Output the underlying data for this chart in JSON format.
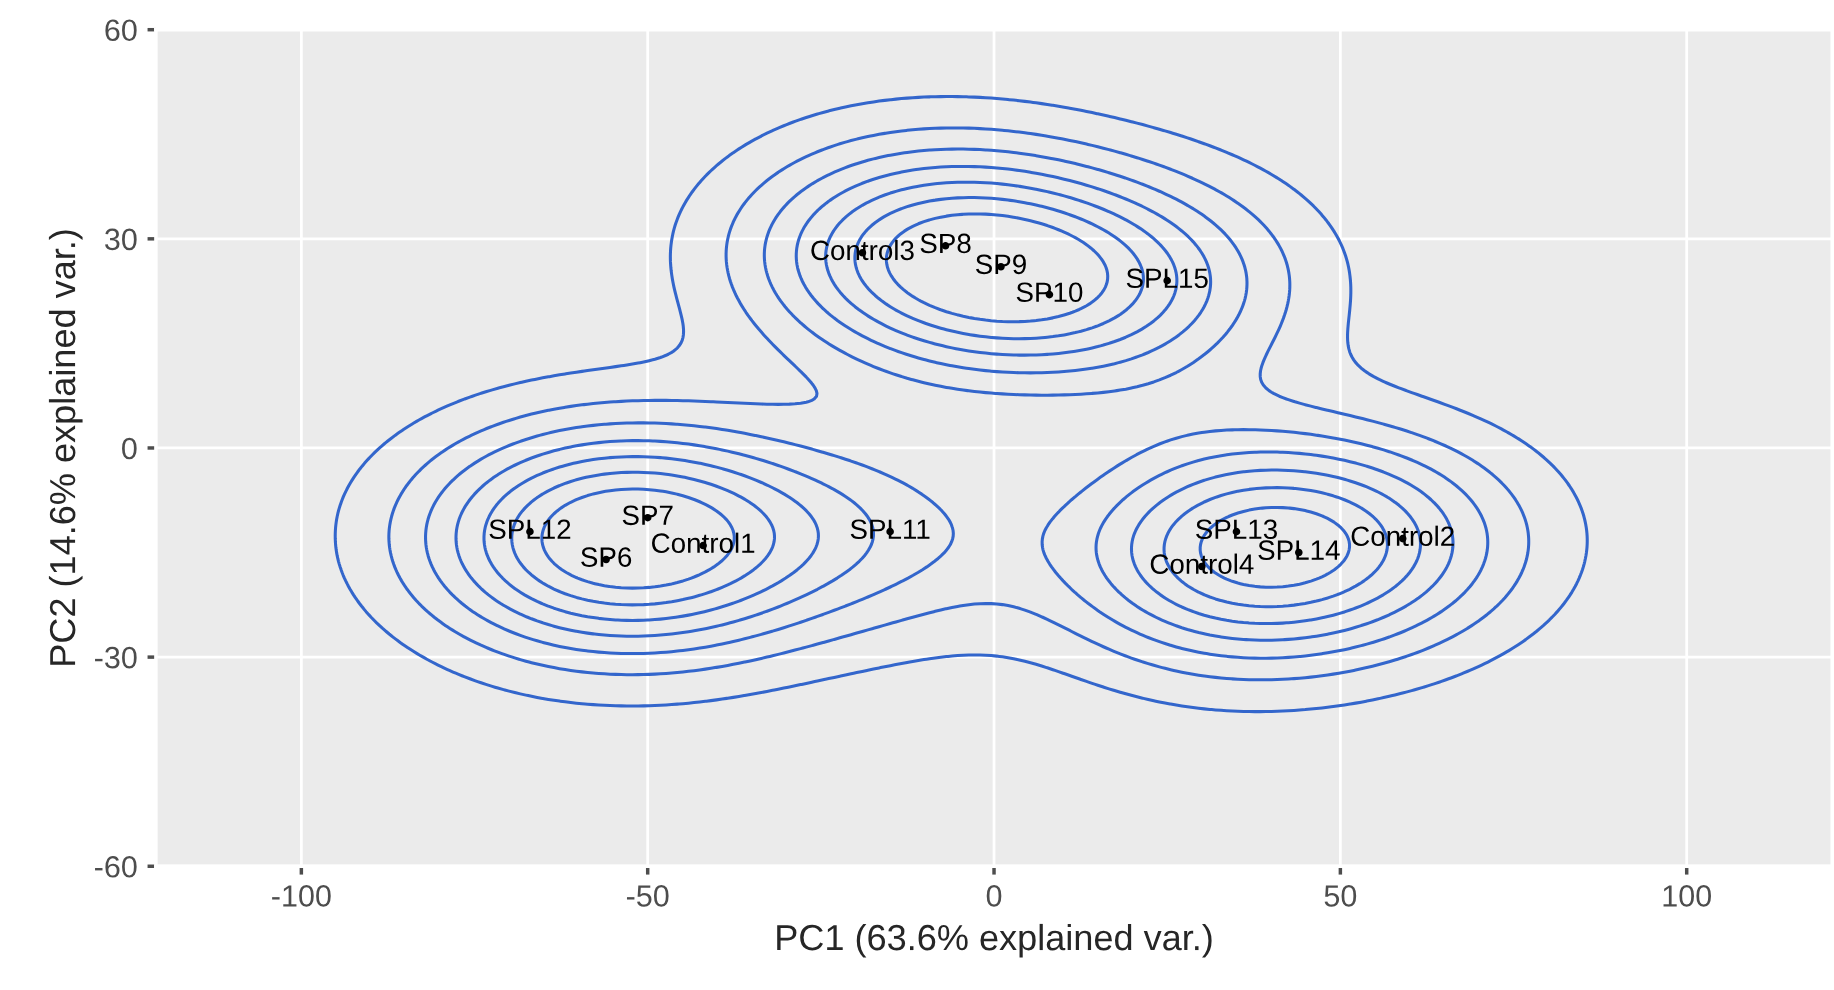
{
  "chart_data": {
    "type": "scatter",
    "xlabel": "PC1 (63.6% explained var.)",
    "ylabel": "PC2 (14.6% explained var.)",
    "xlim": [
      -121,
      121
    ],
    "ylim": [
      -60,
      60
    ],
    "xticks": [
      -100,
      -50,
      0,
      50,
      100
    ],
    "yticks": [
      -60,
      -30,
      0,
      30,
      60
    ],
    "grid": true,
    "marker": "circle",
    "series": [
      {
        "color": "#000000",
        "x": [
          -19,
          -7,
          1,
          8,
          25,
          -67,
          -50,
          -56,
          -42,
          -15,
          35,
          59,
          30,
          44
        ],
        "values": [
          28,
          29,
          26,
          22,
          24,
          -12,
          -10,
          -16,
          -14,
          -12,
          -12,
          -13,
          -17,
          -15
        ],
        "value_labels": [
          "Control3",
          "SP8",
          "SP9",
          "SP10",
          "SPL15",
          "SPL12",
          "SP7",
          "SP6",
          "Control1",
          "SPL11",
          "SPL13",
          "Control2",
          "Control4",
          "SPL14"
        ]
      }
    ]
  }
}
